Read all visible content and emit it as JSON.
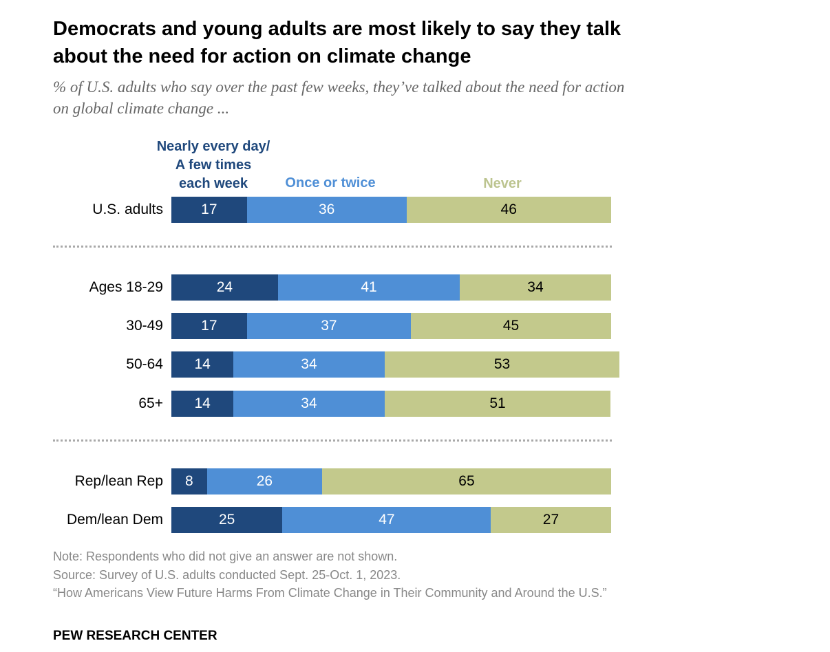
{
  "title": "Democrats and young adults are most likely to say they talk about the need for action on climate change",
  "subtitle": "% of U.S. adults who say over the past few weeks, they’ve talked about the need for action on global climate change ...",
  "legend": {
    "dark_line1": "Nearly every day/",
    "dark_line2": "A few times",
    "dark_line3": "each week",
    "mid": "Once or twice",
    "light": "Never"
  },
  "colors": {
    "dark": "#1f487c",
    "mid": "#4f8fd6",
    "light": "#c3c98c"
  },
  "chart_data": {
    "type": "bar",
    "orientation": "horizontal",
    "stacked": true,
    "title": "Democrats and young adults are most likely to say they talk about the need for action on climate change",
    "categories": [
      "U.S. adults",
      "Ages 18-29",
      "30-49",
      "50-64",
      "65+",
      "Rep/lean Rep",
      "Dem/lean Dem"
    ],
    "series": [
      {
        "name": "Nearly every day/ A few times each week",
        "values": [
          17,
          24,
          17,
          14,
          14,
          8,
          25
        ]
      },
      {
        "name": "Once or twice",
        "values": [
          36,
          41,
          37,
          34,
          34,
          26,
          47
        ]
      },
      {
        "name": "Never",
        "values": [
          46,
          34,
          45,
          53,
          51,
          65,
          27
        ]
      }
    ],
    "xlim": [
      0,
      100
    ],
    "xlabel": "",
    "ylabel": "",
    "grid": false,
    "legend_position": "top"
  },
  "notes": {
    "note": "Note: Respondents who did not give an answer are not shown.",
    "source": "Source: Survey of U.S. adults conducted Sept. 25-Oct. 1, 2023.",
    "report": "“How Americans View Future Harms From Climate Change in Their Community and Around the U.S.”"
  },
  "brand": "PEW RESEARCH CENTER"
}
